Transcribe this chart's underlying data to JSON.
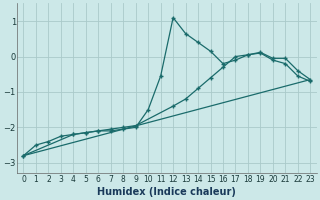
{
  "xlabel": "Humidex (Indice chaleur)",
  "bg_color": "#cce8e8",
  "grid_color": "#aacaca",
  "line_color": "#1a6b6b",
  "xlim": [
    -0.5,
    23.5
  ],
  "ylim": [
    -3.3,
    1.5
  ],
  "xticks": [
    0,
    1,
    2,
    3,
    4,
    5,
    6,
    7,
    8,
    9,
    10,
    11,
    12,
    13,
    14,
    15,
    16,
    17,
    18,
    19,
    20,
    21,
    22,
    23
  ],
  "yticks": [
    -3,
    -2,
    -1,
    0,
    1
  ],
  "curve_x": [
    0,
    1,
    2,
    3,
    4,
    5,
    6,
    7,
    8,
    9,
    10,
    11,
    12,
    13,
    14,
    15,
    16,
    17,
    18,
    19,
    20,
    21,
    22,
    23
  ],
  "curve_y": [
    -2.8,
    -2.5,
    -2.4,
    -2.25,
    -2.2,
    -2.15,
    -2.1,
    -2.1,
    -2.05,
    -2.0,
    -1.5,
    -0.55,
    1.1,
    0.65,
    0.4,
    0.15,
    -0.2,
    -0.1,
    0.05,
    0.12,
    -0.05,
    -0.05,
    -0.4,
    -0.65
  ],
  "line2_x": [
    0,
    4,
    5,
    6,
    7,
    8,
    9,
    12,
    13,
    14,
    15,
    16,
    17,
    18,
    19,
    20,
    21,
    22,
    23
  ],
  "line2_y": [
    -2.8,
    -2.2,
    -2.15,
    -2.1,
    -2.05,
    -2.0,
    -1.95,
    -1.4,
    -1.2,
    -0.9,
    -0.6,
    -0.3,
    0.0,
    0.05,
    0.1,
    -0.1,
    -0.2,
    -0.55,
    -0.7
  ],
  "line1_x": [
    0,
    23
  ],
  "line1_y": [
    -2.8,
    -0.65
  ]
}
